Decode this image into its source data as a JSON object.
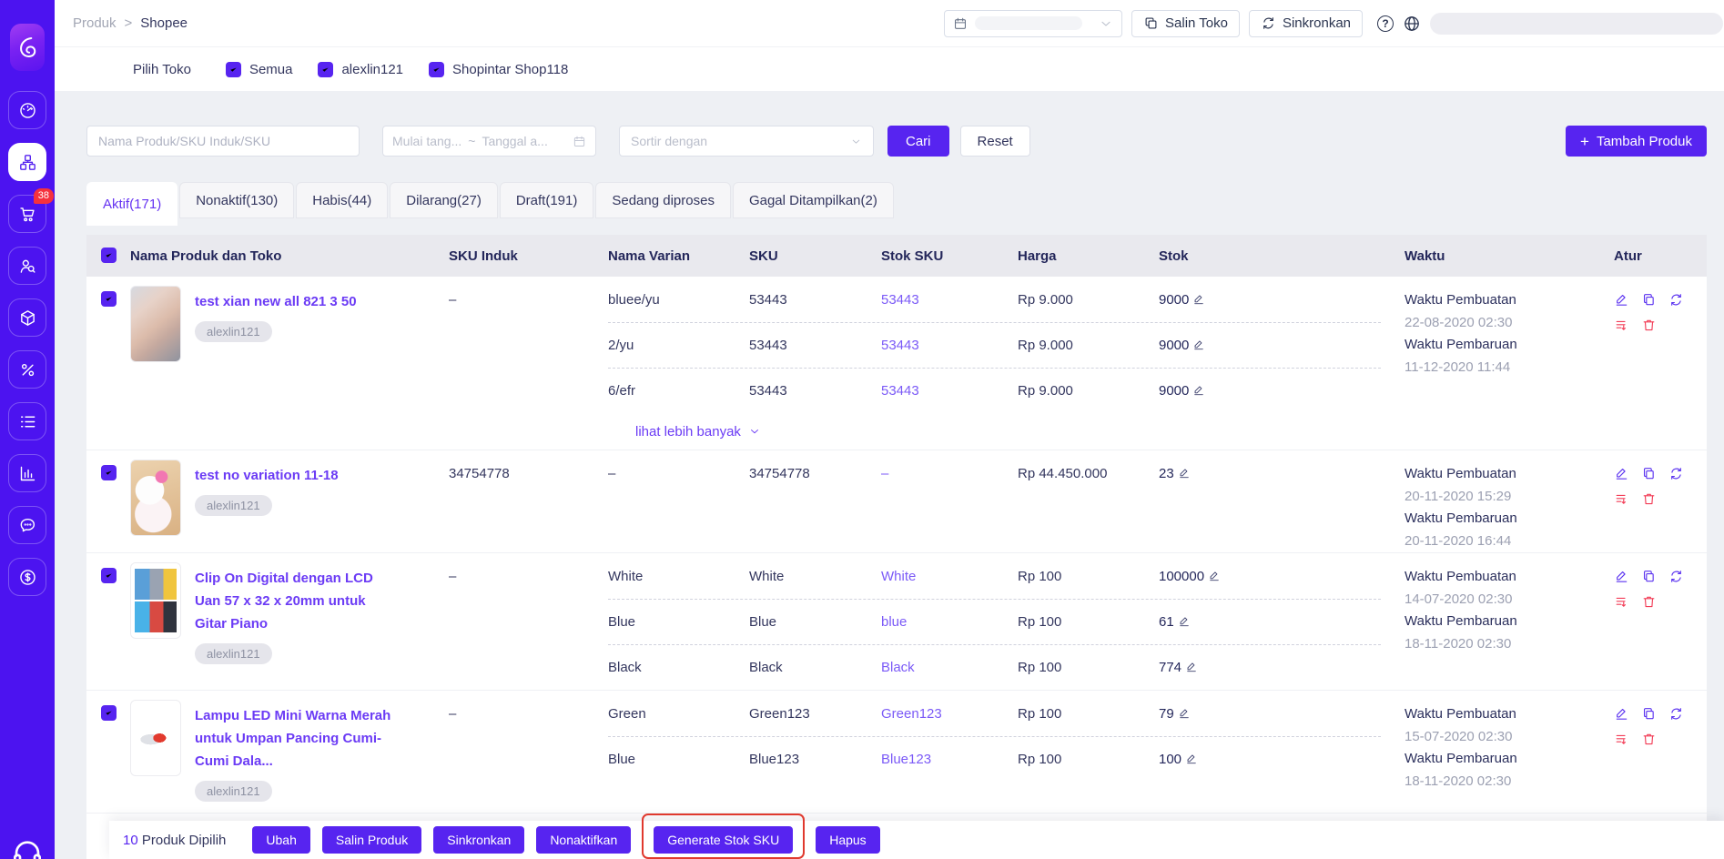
{
  "colors": {
    "sidebar": "#4C13F0",
    "primary": "#5724F0",
    "link": "#6B3BF5",
    "stock_sku_link": "#7B5AF7",
    "danger": "#F23C56",
    "badge": "#F5313D",
    "highlight_box": "#E0392E",
    "table_header_bg": "#E9E9EE",
    "page_bg": "#EEF0F4"
  },
  "sidebar": {
    "items": [
      {
        "name": "dashboard",
        "icon": "dashboard-icon",
        "active": false
      },
      {
        "name": "products",
        "icon": "products-icon",
        "active": true
      },
      {
        "name": "orders",
        "icon": "orders-icon",
        "active": false,
        "badge": "38"
      },
      {
        "name": "customers",
        "icon": "customers-icon",
        "active": false
      },
      {
        "name": "inventory",
        "icon": "inventory-icon",
        "active": false
      },
      {
        "name": "promotion",
        "icon": "promotion-icon",
        "active": false
      },
      {
        "name": "price-list",
        "icon": "price-list-icon",
        "active": false
      },
      {
        "name": "reports",
        "icon": "reports-icon",
        "active": false
      },
      {
        "name": "chat",
        "icon": "chat-icon",
        "active": false
      },
      {
        "name": "finance",
        "icon": "finance-icon",
        "active": false
      }
    ]
  },
  "topbar": {
    "breadcrumb_parent": "Produk",
    "breadcrumb_separator": ">",
    "breadcrumb_current": "Shopee",
    "copy_store_label": "Salin Toko",
    "sync_label": "Sinkronkan",
    "help_glyph": "?"
  },
  "shopbar": {
    "label": "Pilih Toko",
    "options": [
      {
        "label": "Semua",
        "checked": true
      },
      {
        "label": "alexlin121",
        "checked": true
      },
      {
        "label": "Shopintar Shop118",
        "checked": true
      }
    ]
  },
  "filters": {
    "search_placeholder": "Nama Produk/SKU Induk/SKU",
    "date_start_placeholder": "Mulai tang...",
    "date_separator": "~",
    "date_end_placeholder": "Tanggal a...",
    "sort_placeholder": "Sortir dengan",
    "search_button": "Cari",
    "reset_button": "Reset",
    "add_product_button": "Tambah Produk"
  },
  "tabs": [
    {
      "id": "aktif",
      "label": "Aktif(171)",
      "active": true
    },
    {
      "id": "nonaktif",
      "label": "Nonaktif(130)",
      "active": false
    },
    {
      "id": "habis",
      "label": "Habis(44)",
      "active": false
    },
    {
      "id": "dilarang",
      "label": "Dilarang(27)",
      "active": false
    },
    {
      "id": "draft",
      "label": "Draft(191)",
      "active": false
    },
    {
      "id": "sedang-diproses",
      "label": "Sedang diproses",
      "active": false
    },
    {
      "id": "gagal-ditampilkan",
      "label": "Gagal Ditampilkan(2)",
      "active": false
    }
  ],
  "table": {
    "headers": [
      "Nama Produk dan Toko",
      "SKU Induk",
      "Nama Varian",
      "SKU",
      "Stok SKU",
      "Harga",
      "Stok",
      "Waktu",
      "Atur"
    ],
    "show_more_label": "lihat lebih banyak",
    "rows": [
      {
        "name": "test xian new all 821 3 50",
        "shop": "alexlin121",
        "photo": "watch-photo",
        "parent_sku": "–",
        "variants": [
          {
            "name": "bluee/yu",
            "sku": "53443",
            "stock_sku": "53443",
            "price": "Rp 9.000",
            "stock": "9000"
          },
          {
            "name": "2/yu",
            "sku": "53443",
            "stock_sku": "53443",
            "price": "Rp 9.000",
            "stock": "9000"
          },
          {
            "name": "6/efr",
            "sku": "53443",
            "stock_sku": "53443",
            "price": "Rp 9.000",
            "stock": "9000"
          }
        ],
        "show_more": true,
        "time": {
          "created_label": "Waktu Pembuatan",
          "created": "22-08-2020 02:30",
          "updated_label": "Waktu Pembaruan",
          "updated": "11-12-2020 11:44"
        }
      },
      {
        "name": "test no variation 11-18",
        "shop": "alexlin121",
        "photo": "hello-kitty-photo",
        "parent_sku": "34754778",
        "variants": [
          {
            "name": "–",
            "sku": "34754778",
            "stock_sku": "–",
            "price": "Rp 44.450.000",
            "stock": "23"
          }
        ],
        "show_more": false,
        "time": {
          "created_label": "Waktu Pembuatan",
          "created": "20-11-2020 15:29",
          "updated_label": "Waktu Pembaruan",
          "updated": "20-11-2020 16:44"
        }
      },
      {
        "name": "Clip On Digital dengan LCD Uan 57 x 32 x 20mm untuk Gitar Piano",
        "shop": "alexlin121",
        "photo": "tuner-photo",
        "parent_sku": "–",
        "variants": [
          {
            "name": "White",
            "sku": "White",
            "stock_sku": "White",
            "price": "Rp 100",
            "stock": "100000"
          },
          {
            "name": "Blue",
            "sku": "Blue",
            "stock_sku": "blue",
            "price": "Rp 100",
            "stock": "61"
          },
          {
            "name": "Black",
            "sku": "Black",
            "stock_sku": "Black",
            "price": "Rp 100",
            "stock": "774"
          }
        ],
        "show_more": false,
        "time": {
          "created_label": "Waktu Pembuatan",
          "created": "14-07-2020 02:30",
          "updated_label": "Waktu Pembaruan",
          "updated": "18-11-2020 02:30"
        }
      },
      {
        "name": "Lampu LED Mini Warna Merah untuk Umpan Pancing Cumi-Cumi Dala...",
        "shop": "alexlin121",
        "photo": "led-lure-photo",
        "parent_sku": "–",
        "variants": [
          {
            "name": "Green",
            "sku": "Green123",
            "stock_sku": "Green123",
            "price": "Rp 100",
            "stock": "79"
          },
          {
            "name": "Blue",
            "sku": "Blue123",
            "stock_sku": "Blue123",
            "price": "Rp 100",
            "stock": "100"
          }
        ],
        "show_more": false,
        "time": {
          "created_label": "Waktu Pembuatan",
          "created": "15-07-2020 02:30",
          "updated_label": "Waktu Pembaruan",
          "updated": "18-11-2020 02:30"
        }
      }
    ]
  },
  "footer": {
    "selected_count": "10",
    "selected_label": "Produk Dipilih",
    "actions": [
      "Ubah",
      "Salin Produk",
      "Sinkronkan",
      "Nonaktifkan",
      "Generate Stok SKU",
      "Hapus"
    ],
    "highlighted_action": "Generate Stok SKU"
  }
}
